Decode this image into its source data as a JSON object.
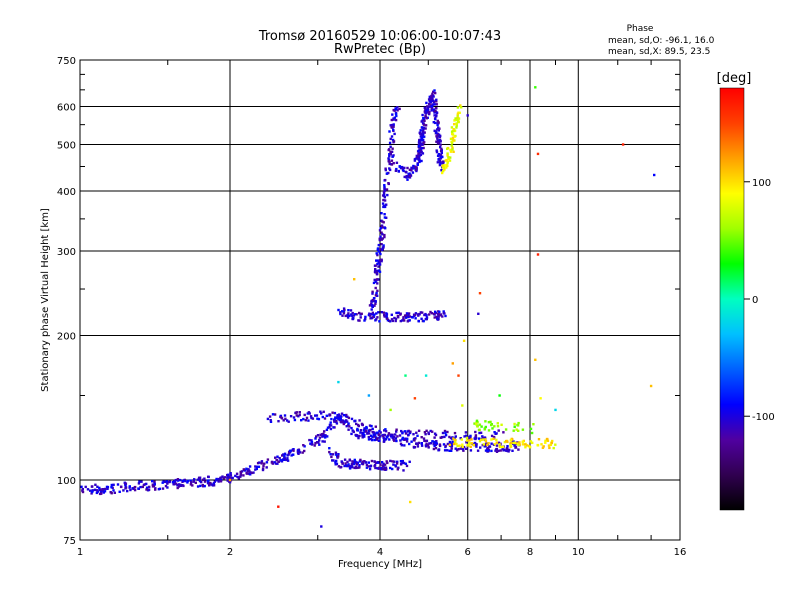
{
  "chart_data": {
    "type": "scatter",
    "title": "Tromsø 20160529 10:06:00-10:07:43",
    "subtitle": "RwPretec (Bp)",
    "xlabel": "Frequency [MHz]",
    "ylabel": "Stationary phase Virtual Height [km]",
    "x_scale": "log",
    "y_scale": "log",
    "xlim": [
      1,
      16
    ],
    "ylim": [
      75,
      750
    ],
    "x_ticks": [
      "1",
      "2",
      "4",
      "6",
      "8",
      "10",
      "16"
    ],
    "x_tick_values": [
      1,
      2,
      4,
      6,
      8,
      10,
      16
    ],
    "y_ticks": [
      "75",
      "100",
      "200",
      "300",
      "400",
      "500",
      "600",
      "750"
    ],
    "y_tick_values": [
      75,
      100,
      200,
      300,
      400,
      500,
      600,
      750
    ],
    "grid": true,
    "stats": {
      "heading": "Phase",
      "o_line": "mean, sd,O: -96.1, 16.0",
      "x_line": "mean, sd,X:  89.5, 23.5"
    },
    "colorbar": {
      "label": "[deg]",
      "range": [
        -180,
        180
      ],
      "ticks": [
        "100",
        "0",
        "-100"
      ],
      "tick_values": [
        100,
        0,
        -100
      ],
      "colors": [
        "#000000",
        "#300050",
        "#5000a0",
        "#0000ff",
        "#0060ff",
        "#00c0ff",
        "#00ffc0",
        "#00ff00",
        "#a0ff00",
        "#ffff00",
        "#ffa000",
        "#ff4000",
        "#ff0000"
      ]
    },
    "series": [
      {
        "phase": -105,
        "segments": [
          [
            1.0,
            95,
            1.95,
            100
          ],
          [
            1.95,
            100,
            2.2,
            105
          ]
        ],
        "points": 220
      },
      {
        "phase": -105,
        "segments": [
          [
            2.2,
            105,
            2.6,
            112
          ],
          [
            2.6,
            112,
            3.05,
            122
          ],
          [
            3.05,
            122,
            3.3,
            136
          ],
          [
            3.3,
            136,
            3.6,
            125
          ],
          [
            3.6,
            125,
            5.0,
            118
          ],
          [
            5.0,
            118,
            7.0,
            117
          ],
          [
            7.0,
            117,
            7.6,
            118
          ]
        ],
        "points": 360
      },
      {
        "phase": -105,
        "segments": [
          [
            3.15,
            115,
            3.35,
            108
          ],
          [
            3.35,
            108,
            4.55,
            107
          ]
        ],
        "points": 130
      },
      {
        "phase": -105,
        "segments": [
          [
            2.4,
            135,
            3.3,
            136
          ],
          [
            3.3,
            136,
            4.0,
            125
          ],
          [
            4.0,
            125,
            5.5,
            124
          ],
          [
            5.5,
            124,
            7.0,
            124
          ]
        ],
        "points": 190
      },
      {
        "phase": -105,
        "segments": [
          [
            3.3,
            225,
            3.6,
            219
          ],
          [
            3.6,
            219,
            5.1,
            219
          ],
          [
            5.1,
            219,
            5.4,
            222
          ]
        ],
        "points": 140
      },
      {
        "phase": -105,
        "segments": [
          [
            3.85,
            220,
            3.9,
            240
          ],
          [
            3.9,
            240,
            3.95,
            270
          ],
          [
            3.95,
            270,
            4.05,
            330
          ],
          [
            4.05,
            330,
            4.1,
            400
          ],
          [
            4.1,
            400,
            4.2,
            470
          ],
          [
            4.2,
            470,
            4.25,
            560
          ],
          [
            4.25,
            560,
            4.35,
            600
          ]
        ],
        "points": 190
      },
      {
        "phase": -105,
        "segments": [
          [
            4.3,
            450,
            4.6,
            430
          ],
          [
            4.6,
            430,
            4.8,
            470
          ],
          [
            4.8,
            470,
            4.9,
            560
          ],
          [
            4.9,
            560,
            5.1,
            640
          ],
          [
            5.1,
            640,
            5.2,
            540
          ],
          [
            5.2,
            540,
            5.3,
            450
          ]
        ],
        "points": 290
      },
      {
        "phase": 95,
        "segments": [
          [
            5.5,
            120,
            9.0,
            119
          ]
        ],
        "points": 90
      },
      {
        "phase": 85,
        "segments": [
          [
            5.3,
            440,
            5.5,
            470
          ],
          [
            5.5,
            470,
            5.7,
            560
          ],
          [
            5.7,
            560,
            5.8,
            600
          ]
        ],
        "points": 70
      },
      {
        "phase": 60,
        "segments": [
          [
            6.2,
            130,
            8.2,
            128
          ]
        ],
        "points": 40
      }
    ],
    "scattered_points": [
      [
        2.5,
        88,
        170
      ],
      [
        3.05,
        80,
        -100
      ],
      [
        8.3,
        295,
        165
      ],
      [
        8.3,
        478,
        160
      ],
      [
        8.2,
        658,
        40
      ],
      [
        12.3,
        500,
        165
      ],
      [
        14.2,
        432,
        -90
      ],
      [
        14.0,
        157,
        110
      ],
      [
        5.9,
        195,
        100
      ],
      [
        6.35,
        245,
        150
      ],
      [
        8.2,
        178,
        110
      ],
      [
        3.55,
        262,
        110
      ],
      [
        5.75,
        165,
        150
      ],
      [
        4.6,
        90,
        100
      ],
      [
        6.95,
        150,
        30
      ],
      [
        3.8,
        150,
        -40
      ],
      [
        4.5,
        165,
        10
      ],
      [
        5.6,
        175,
        120
      ],
      [
        8.4,
        148,
        90
      ],
      [
        2.0,
        100,
        120
      ],
      [
        9.0,
        140,
        -20
      ],
      [
        4.7,
        148,
        150
      ],
      [
        3.3,
        160,
        -20
      ],
      [
        5.85,
        143,
        80
      ],
      [
        6.0,
        575,
        -105
      ],
      [
        4.95,
        165,
        -10
      ],
      [
        4.2,
        140,
        60
      ],
      [
        6.3,
        222,
        -105
      ]
    ]
  }
}
